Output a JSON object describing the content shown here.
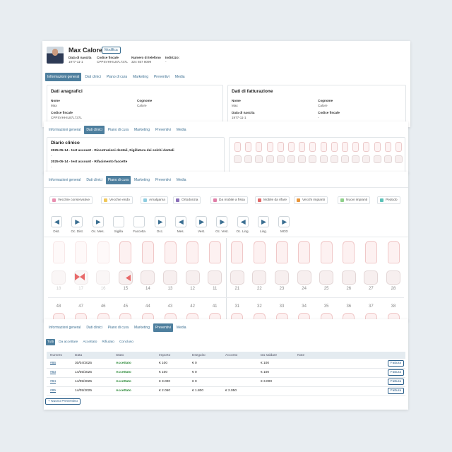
{
  "header": {
    "name": "Max Calore",
    "edit_button": "Modifica",
    "fields": [
      {
        "label": "Data di nascita",
        "value": "1977-11-1"
      },
      {
        "label": "Codice fiscale",
        "value": "CPPSVHHIL87L737L"
      },
      {
        "label": "Numero di telefono",
        "value": "324 657 8099"
      },
      {
        "label": "Indirizzo:",
        "value": "-"
      }
    ]
  },
  "tabs": [
    "Informazioni general",
    "Dati clinici",
    "Piano di cura",
    "Marketing",
    "Preventivi",
    "Media"
  ],
  "general": {
    "registry": {
      "title": "Dati anagrafici",
      "fields": [
        {
          "label": "Nome",
          "value": "Max"
        },
        {
          "label": "Cognome",
          "value": "Calore"
        },
        {
          "label": "Codice fiscale",
          "value": "CPPSVHHIL87L737L"
        }
      ]
    },
    "billing": {
      "title": "Dati di fatturazione",
      "fields": [
        {
          "label": "Nome",
          "value": "Max"
        },
        {
          "label": "Cognome",
          "value": "Calore"
        },
        {
          "label": "Data di nascita",
          "value": "1977-11-1"
        },
        {
          "label": "Codice fiscale",
          "value": "-"
        }
      ]
    }
  },
  "clinical": {
    "diary_title": "Diario clinico",
    "entries": [
      "2025-05-14 - test account - Ricostruzioni dentali, Sigillatura dei solchi dentali",
      "-",
      "2025-05-14 - test account - Rifacimento faccette",
      "-"
    ]
  },
  "care_plan": {
    "legend": [
      {
        "label": "Vecchie conservative",
        "color": "#e88fb0"
      },
      {
        "label": "Vecchie endo",
        "color": "#f0c85a"
      },
      {
        "label": "Amalgama",
        "color": "#8fcde0"
      },
      {
        "label": "Ortodonzia",
        "color": "#8a6fb8"
      },
      {
        "label": "Da mobile a fissa",
        "color": "#e07fa8"
      },
      {
        "label": "Mobile da rifare",
        "color": "#e06a6a"
      },
      {
        "label": "Vecchi impianti",
        "color": "#e8963c"
      },
      {
        "label": "Nuovi impianti",
        "color": "#8fd08a"
      },
      {
        "label": "Pedodo",
        "color": "#5cc2b8"
      }
    ],
    "tools": [
      "Dist.",
      "Oc. Dist.",
      "Oc. Mes.",
      "Sigilla",
      "Faccetta",
      "Occ.",
      "Mes.",
      "Vest.",
      "Oc. Vest.",
      "Oc. Ling.",
      "Ling.",
      "MOD"
    ],
    "upper_teeth": [
      "18",
      "17",
      "16",
      "15",
      "14",
      "13",
      "12",
      "11",
      "21",
      "22",
      "23",
      "24",
      "25",
      "26",
      "27",
      "28"
    ],
    "lower_teeth": [
      "48",
      "47",
      "46",
      "45",
      "44",
      "43",
      "42",
      "41",
      "31",
      "32",
      "33",
      "34",
      "35",
      "36",
      "37",
      "38"
    ]
  },
  "estimates": {
    "filters": [
      "Tutti",
      "Da accettare",
      "Accettato",
      "Rifiutato",
      "Concluso"
    ],
    "columns": [
      "Numero",
      "Data",
      "Stato",
      "Importo",
      "Eseguito",
      "Acconto",
      "Da saldare",
      "Note"
    ],
    "rows": [
      [
        "#86",
        "30/04/2025",
        "Accettato",
        "€ 100",
        "€ 0",
        null,
        "€ 100",
        null
      ],
      [
        "#83",
        "14/05/2025",
        "Accettato",
        "€ 100",
        "€ 0",
        null,
        "€ 100",
        null
      ],
      [
        "#84",
        "14/05/2025",
        "Accettato",
        "€ 3.000",
        "€ 0",
        null,
        "€ 3.000",
        null
      ],
      [
        "#85",
        "14/05/2025",
        "Accettato",
        "€ 2.050",
        "€ 1.800",
        "€ 2.050",
        null,
        null
      ]
    ],
    "row_action": "Fattura",
    "new_button": "+ Nuovo Preventivo"
  }
}
